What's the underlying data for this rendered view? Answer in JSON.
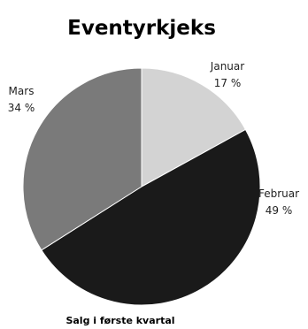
{
  "chart_data": {
    "type": "pie",
    "title": "Eventyrkjeks",
    "caption": "Salg i første kvartal",
    "slices": [
      {
        "name": "Januar",
        "percent_label": "17 %",
        "value": 17,
        "color": "#d3d3d3"
      },
      {
        "name": "Februar",
        "percent_label": "49 %",
        "value": 49,
        "color": "#1a1a1a"
      },
      {
        "name": "Mars",
        "percent_label": "34 %",
        "value": 34,
        "color": "#7a7a7a"
      }
    ]
  }
}
